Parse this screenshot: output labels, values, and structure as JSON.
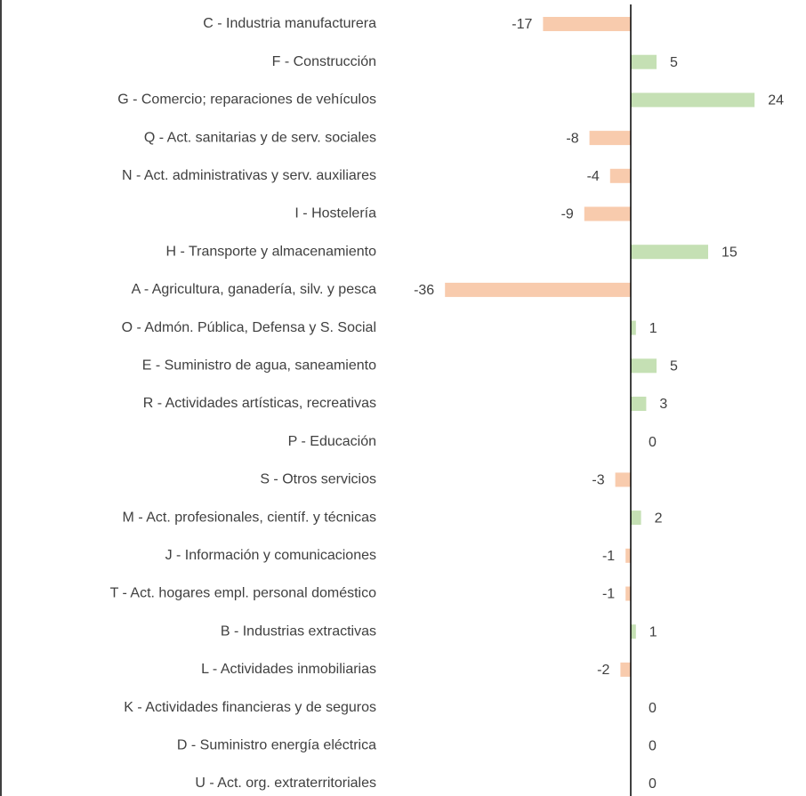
{
  "chart_data": {
    "type": "barh",
    "categories": [
      "C - Industria manufacturera",
      "F - Construcción",
      "G - Comercio; reparaciones de vehículos",
      "Q - Act. sanitarias y de serv. sociales",
      "N - Act. administrativas y serv. auxiliares",
      "I - Hostelería",
      "H - Transporte y almacenamiento",
      "A - Agricultura, ganadería, silv. y pesca",
      "O - Admón. Pública, Defensa y S. Social",
      "E - Suministro de agua, saneamiento",
      "R - Actividades artísticas, recreativas",
      "P - Educación",
      "S - Otros servicios",
      "M - Act. profesionales, científ. y técnicas",
      "J - Información y comunicaciones",
      "T - Act. hogares empl. personal doméstico",
      "B - Industrias extractivas",
      "L - Actividades inmobiliarias",
      "K - Actividades financieras y de seguros",
      "D - Suministro energía eléctrica",
      "U - Act. org. extraterritoriales"
    ],
    "values": [
      -17,
      5,
      24,
      -8,
      -4,
      -9,
      15,
      -36,
      1,
      5,
      3,
      0,
      -3,
      2,
      -1,
      -1,
      1,
      -2,
      0,
      0,
      0
    ],
    "colors": {
      "positive": "#c5e0b4",
      "negative": "#f8cbad"
    }
  }
}
